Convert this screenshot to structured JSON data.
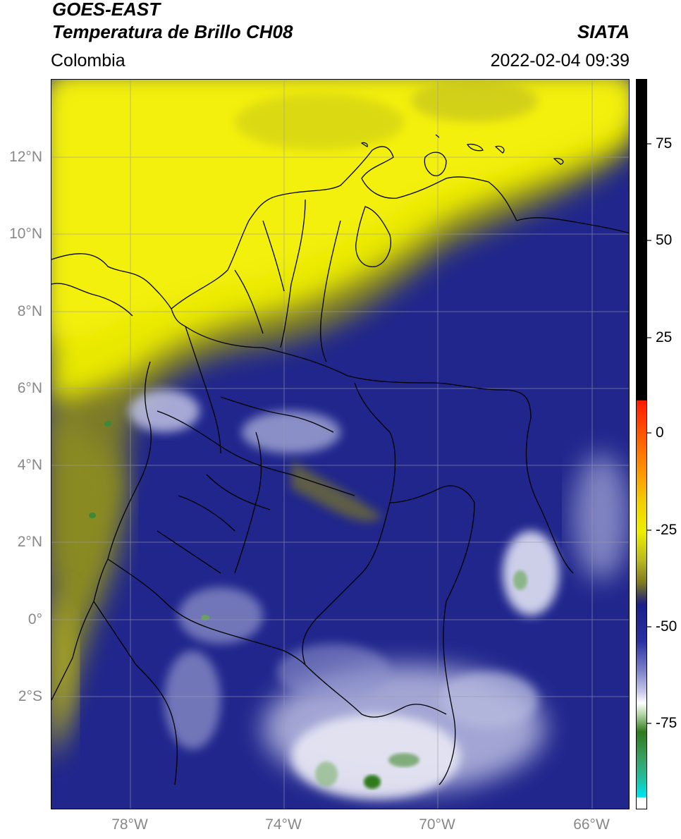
{
  "header": {
    "title_line1": "GOES-EAST",
    "title_line2": "Temperatura de Brillo CH08",
    "region": "Colombia",
    "agency": "SIATA",
    "datetime": "2022-02-04 09:39"
  },
  "map": {
    "lat_labels": [
      "12°N",
      "10°N",
      "8°N",
      "6°N",
      "4°N",
      "2°N",
      "0°",
      "2°S"
    ],
    "lon_labels": [
      "78°W",
      "74°W",
      "70°W",
      "66°W"
    ],
    "lat_range": [
      -4.5,
      14.0
    ],
    "lon_range": [
      -80.0,
      -65.0
    ]
  },
  "colorbar": {
    "ticks": [
      "75",
      "50",
      "25",
      "0",
      "-25",
      "-50",
      "-75"
    ],
    "range": [
      -95,
      90
    ],
    "colors": {
      "black": "#000000",
      "red": "#ff1a00",
      "orange": "#ff9900",
      "yellow": "#eeee00",
      "olive": "#807a20",
      "navy": "#1a1f8a",
      "lavender": "#c8c8e8",
      "white": "#ffffff",
      "green": "#2e7a1e",
      "teal": "#20c0a0",
      "cyan": "#00e0e8"
    }
  }
}
